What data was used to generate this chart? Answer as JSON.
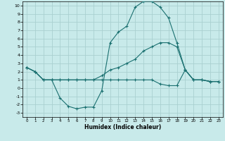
{
  "background_color": "#c8eaea",
  "grid_color": "#aad0d0",
  "line_color": "#1a7070",
  "xlabel": "Humidex (Indice chaleur)",
  "xlim": [
    -0.5,
    23.5
  ],
  "ylim": [
    -3.5,
    10.5
  ],
  "xticks": [
    0,
    1,
    2,
    3,
    4,
    5,
    6,
    7,
    8,
    9,
    10,
    11,
    12,
    13,
    14,
    15,
    16,
    17,
    18,
    19,
    20,
    21,
    22,
    23
  ],
  "yticks": [
    -3,
    -2,
    -1,
    0,
    1,
    2,
    3,
    4,
    5,
    6,
    7,
    8,
    9,
    10
  ],
  "curve1_x": [
    0,
    1,
    2,
    3,
    4,
    5,
    6,
    7,
    8,
    9,
    10,
    11,
    12,
    13,
    14,
    15,
    16,
    17,
    18,
    19,
    20,
    21,
    22,
    23
  ],
  "curve1_y": [
    2.5,
    2.0,
    1.0,
    1.0,
    -1.2,
    -2.2,
    -2.5,
    -2.3,
    -2.3,
    -0.3,
    5.5,
    6.8,
    7.5,
    9.8,
    10.5,
    10.5,
    9.8,
    8.5,
    5.5,
    2.2,
    1.0,
    1.0,
    0.8,
    0.8
  ],
  "curve2_x": [
    0,
    1,
    2,
    3,
    4,
    5,
    6,
    7,
    8,
    9,
    10,
    11,
    12,
    13,
    14,
    15,
    16,
    17,
    18,
    19,
    20,
    21,
    22,
    23
  ],
  "curve2_y": [
    2.5,
    2.0,
    1.0,
    1.0,
    1.0,
    1.0,
    1.0,
    1.0,
    1.0,
    1.5,
    2.2,
    2.5,
    3.0,
    3.5,
    4.5,
    5.0,
    5.5,
    5.5,
    5.0,
    2.2,
    1.0,
    1.0,
    0.8,
    0.8
  ],
  "curve3_x": [
    0,
    1,
    2,
    3,
    4,
    5,
    6,
    7,
    8,
    9,
    10,
    11,
    12,
    13,
    14,
    15,
    16,
    17,
    18,
    19,
    20,
    21,
    22,
    23
  ],
  "curve3_y": [
    2.5,
    2.0,
    1.0,
    1.0,
    1.0,
    1.0,
    1.0,
    1.0,
    1.0,
    1.0,
    1.0,
    1.0,
    1.0,
    1.0,
    1.0,
    1.0,
    0.5,
    0.3,
    0.3,
    2.2,
    1.0,
    1.0,
    0.8,
    0.8
  ]
}
